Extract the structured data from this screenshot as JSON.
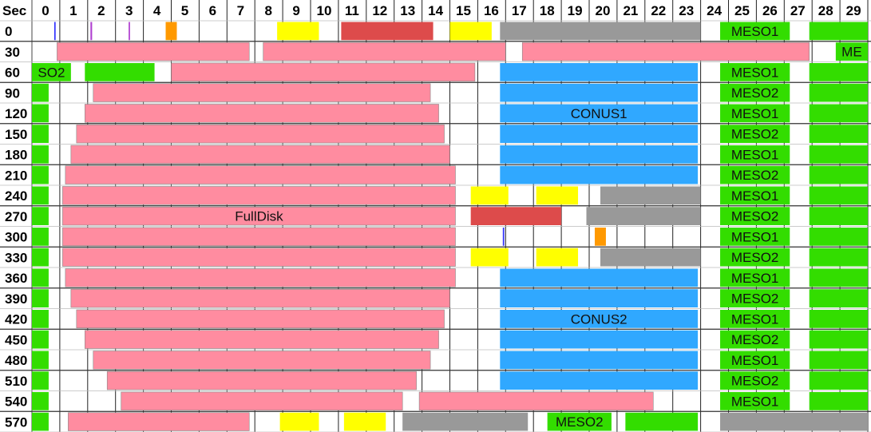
{
  "chart_data": {
    "type": "timeline",
    "corner_label": "Sec",
    "x_ticks": [
      "0",
      "1",
      "2",
      "3",
      "4",
      "5",
      "6",
      "7",
      "8",
      "9",
      "10",
      "11",
      "12",
      "13",
      "14",
      "15",
      "16",
      "17",
      "18",
      "19",
      "20",
      "21",
      "22",
      "23",
      "24",
      "25",
      "26",
      "27",
      "28",
      "29"
    ],
    "rows": [
      "0",
      "30",
      "60",
      "90",
      "120",
      "150",
      "180",
      "210",
      "240",
      "270",
      "300",
      "330",
      "360",
      "390",
      "420",
      "450",
      "480",
      "510",
      "540",
      "570"
    ],
    "colors": {
      "pink": "#ff8ca0",
      "blue": "#30a8ff",
      "green": "#33dd00",
      "gray": "#999999",
      "yellow": "#ffff00",
      "red": "#dd4b4b",
      "orange": "#ff9900",
      "purple": "#b040d0",
      "navy": "#3333ff"
    },
    "blocks": [
      {
        "row": 0,
        "start": 0.8,
        "end": 0.85,
        "color": "navy"
      },
      {
        "row": 0,
        "start": 2.1,
        "end": 2.16,
        "color": "purple"
      },
      {
        "row": 0,
        "start": 3.47,
        "end": 3.52,
        "color": "purple"
      },
      {
        "row": 0,
        "start": 4.8,
        "end": 5.2,
        "color": "orange"
      },
      {
        "row": 0,
        "start": 8.8,
        "end": 10.3,
        "color": "yellow"
      },
      {
        "row": 0,
        "start": 11.1,
        "end": 14.4,
        "color": "red"
      },
      {
        "row": 0,
        "start": 15.0,
        "end": 16.5,
        "color": "yellow"
      },
      {
        "row": 0,
        "start": 16.8,
        "end": 24.0,
        "color": "gray"
      },
      {
        "row": 0,
        "start": 24.7,
        "end": 27.2,
        "color": "green",
        "label": "MESO1"
      },
      {
        "row": 0,
        "start": 27.9,
        "end": 30.0,
        "color": "green"
      },
      {
        "row": 1,
        "start": 0.9,
        "end": 7.8,
        "color": "pink"
      },
      {
        "row": 1,
        "start": 8.3,
        "end": 17.0,
        "color": "pink"
      },
      {
        "row": 1,
        "start": 17.6,
        "end": 27.9,
        "color": "pink"
      },
      {
        "row": 1,
        "start": 28.85,
        "end": 30.0,
        "color": "green",
        "label": "ME"
      },
      {
        "row": 2,
        "start": 0.0,
        "end": 1.4,
        "color": "green",
        "label": "SO2"
      },
      {
        "row": 2,
        "start": 1.9,
        "end": 4.4,
        "color": "green"
      },
      {
        "row": 2,
        "start": 5.0,
        "end": 15.9,
        "color": "pink"
      },
      {
        "row": 2,
        "start": 16.8,
        "end": 23.9,
        "color": "blue"
      },
      {
        "row": 2,
        "start": 24.7,
        "end": 27.2,
        "color": "green",
        "label": "MESO1"
      },
      {
        "row": 2,
        "start": 27.9,
        "end": 30.0,
        "color": "green"
      },
      {
        "row": 3,
        "start": 0.0,
        "end": 0.6,
        "color": "green"
      },
      {
        "row": 3,
        "start": 2.2,
        "end": 14.3,
        "color": "pink"
      },
      {
        "row": 3,
        "start": 16.8,
        "end": 23.9,
        "color": "blue"
      },
      {
        "row": 3,
        "start": 24.7,
        "end": 27.2,
        "color": "green",
        "label": "MESO2"
      },
      {
        "row": 3,
        "start": 27.9,
        "end": 30.0,
        "color": "green"
      },
      {
        "row": 4,
        "start": 0.0,
        "end": 0.6,
        "color": "green"
      },
      {
        "row": 4,
        "start": 1.9,
        "end": 14.6,
        "color": "pink"
      },
      {
        "row": 4,
        "start": 16.8,
        "end": 23.9,
        "color": "blue",
        "label": "CONUS1"
      },
      {
        "row": 4,
        "start": 24.7,
        "end": 27.2,
        "color": "green",
        "label": "MESO1"
      },
      {
        "row": 4,
        "start": 27.9,
        "end": 30.0,
        "color": "green"
      },
      {
        "row": 5,
        "start": 0.0,
        "end": 0.6,
        "color": "green"
      },
      {
        "row": 5,
        "start": 1.6,
        "end": 14.8,
        "color": "pink"
      },
      {
        "row": 5,
        "start": 16.8,
        "end": 23.9,
        "color": "blue"
      },
      {
        "row": 5,
        "start": 24.7,
        "end": 27.2,
        "color": "green",
        "label": "MESO2"
      },
      {
        "row": 5,
        "start": 27.9,
        "end": 30.0,
        "color": "green"
      },
      {
        "row": 6,
        "start": 0.0,
        "end": 0.6,
        "color": "green"
      },
      {
        "row": 6,
        "start": 1.4,
        "end": 15.0,
        "color": "pink"
      },
      {
        "row": 6,
        "start": 16.8,
        "end": 23.9,
        "color": "blue"
      },
      {
        "row": 6,
        "start": 24.7,
        "end": 27.2,
        "color": "green",
        "label": "MESO1"
      },
      {
        "row": 6,
        "start": 27.9,
        "end": 30.0,
        "color": "green"
      },
      {
        "row": 7,
        "start": 0.0,
        "end": 0.6,
        "color": "green"
      },
      {
        "row": 7,
        "start": 1.2,
        "end": 15.2,
        "color": "pink"
      },
      {
        "row": 7,
        "start": 16.8,
        "end": 23.9,
        "color": "blue"
      },
      {
        "row": 7,
        "start": 24.7,
        "end": 27.2,
        "color": "green",
        "label": "MESO2"
      },
      {
        "row": 7,
        "start": 27.9,
        "end": 30.0,
        "color": "green"
      },
      {
        "row": 8,
        "start": 0.0,
        "end": 0.6,
        "color": "green"
      },
      {
        "row": 8,
        "start": 1.1,
        "end": 15.2,
        "color": "pink"
      },
      {
        "row": 8,
        "start": 15.75,
        "end": 17.1,
        "color": "yellow"
      },
      {
        "row": 8,
        "start": 18.1,
        "end": 19.6,
        "color": "yellow"
      },
      {
        "row": 8,
        "start": 20.4,
        "end": 24.0,
        "color": "gray"
      },
      {
        "row": 8,
        "start": 24.7,
        "end": 27.2,
        "color": "green",
        "label": "MESO1"
      },
      {
        "row": 8,
        "start": 27.9,
        "end": 30.0,
        "color": "green"
      },
      {
        "row": 9,
        "start": 0.0,
        "end": 0.6,
        "color": "green"
      },
      {
        "row": 9,
        "start": 1.1,
        "end": 15.2,
        "color": "pink",
        "label": "FullDisk"
      },
      {
        "row": 9,
        "start": 15.75,
        "end": 19.0,
        "color": "red"
      },
      {
        "row": 9,
        "start": 19.9,
        "end": 24.0,
        "color": "gray"
      },
      {
        "row": 9,
        "start": 24.7,
        "end": 27.2,
        "color": "green",
        "label": "MESO2"
      },
      {
        "row": 9,
        "start": 27.9,
        "end": 30.0,
        "color": "green"
      },
      {
        "row": 10,
        "start": 0.0,
        "end": 0.6,
        "color": "green"
      },
      {
        "row": 10,
        "start": 1.1,
        "end": 15.2,
        "color": "pink"
      },
      {
        "row": 10,
        "start": 16.9,
        "end": 16.95,
        "color": "navy"
      },
      {
        "row": 10,
        "start": 20.2,
        "end": 20.6,
        "color": "orange"
      },
      {
        "row": 10,
        "start": 24.7,
        "end": 27.2,
        "color": "green",
        "label": "MESO1"
      },
      {
        "row": 10,
        "start": 27.9,
        "end": 30.0,
        "color": "green"
      },
      {
        "row": 11,
        "start": 0.0,
        "end": 0.6,
        "color": "green"
      },
      {
        "row": 11,
        "start": 1.1,
        "end": 15.2,
        "color": "pink"
      },
      {
        "row": 11,
        "start": 15.75,
        "end": 17.1,
        "color": "yellow"
      },
      {
        "row": 11,
        "start": 18.1,
        "end": 19.6,
        "color": "yellow"
      },
      {
        "row": 11,
        "start": 20.4,
        "end": 24.0,
        "color": "gray"
      },
      {
        "row": 11,
        "start": 24.7,
        "end": 27.2,
        "color": "green",
        "label": "MESO2"
      },
      {
        "row": 11,
        "start": 27.9,
        "end": 30.0,
        "color": "green"
      },
      {
        "row": 12,
        "start": 0.0,
        "end": 0.6,
        "color": "green"
      },
      {
        "row": 12,
        "start": 1.2,
        "end": 15.2,
        "color": "pink"
      },
      {
        "row": 12,
        "start": 16.8,
        "end": 23.9,
        "color": "blue"
      },
      {
        "row": 12,
        "start": 24.7,
        "end": 27.2,
        "color": "green",
        "label": "MESO1"
      },
      {
        "row": 12,
        "start": 27.9,
        "end": 30.0,
        "color": "green"
      },
      {
        "row": 13,
        "start": 0.0,
        "end": 0.6,
        "color": "green"
      },
      {
        "row": 13,
        "start": 1.4,
        "end": 15.0,
        "color": "pink"
      },
      {
        "row": 13,
        "start": 16.8,
        "end": 23.9,
        "color": "blue"
      },
      {
        "row": 13,
        "start": 24.7,
        "end": 27.2,
        "color": "green",
        "label": "MESO2"
      },
      {
        "row": 13,
        "start": 27.9,
        "end": 30.0,
        "color": "green"
      },
      {
        "row": 14,
        "start": 0.0,
        "end": 0.6,
        "color": "green"
      },
      {
        "row": 14,
        "start": 1.6,
        "end": 14.8,
        "color": "pink"
      },
      {
        "row": 14,
        "start": 16.8,
        "end": 23.9,
        "color": "blue",
        "label": "CONUS2"
      },
      {
        "row": 14,
        "start": 24.7,
        "end": 27.2,
        "color": "green",
        "label": "MESO1"
      },
      {
        "row": 14,
        "start": 27.9,
        "end": 30.0,
        "color": "green"
      },
      {
        "row": 15,
        "start": 0.0,
        "end": 0.6,
        "color": "green"
      },
      {
        "row": 15,
        "start": 1.9,
        "end": 14.6,
        "color": "pink"
      },
      {
        "row": 15,
        "start": 16.8,
        "end": 23.9,
        "color": "blue"
      },
      {
        "row": 15,
        "start": 24.7,
        "end": 27.2,
        "color": "green",
        "label": "MESO2"
      },
      {
        "row": 15,
        "start": 27.9,
        "end": 30.0,
        "color": "green"
      },
      {
        "row": 16,
        "start": 0.0,
        "end": 0.6,
        "color": "green"
      },
      {
        "row": 16,
        "start": 2.2,
        "end": 14.3,
        "color": "pink"
      },
      {
        "row": 16,
        "start": 16.8,
        "end": 23.9,
        "color": "blue"
      },
      {
        "row": 16,
        "start": 24.7,
        "end": 27.2,
        "color": "green",
        "label": "MESO1"
      },
      {
        "row": 16,
        "start": 27.9,
        "end": 30.0,
        "color": "green"
      },
      {
        "row": 17,
        "start": 0.0,
        "end": 0.6,
        "color": "green"
      },
      {
        "row": 17,
        "start": 2.7,
        "end": 13.8,
        "color": "pink"
      },
      {
        "row": 17,
        "start": 16.8,
        "end": 23.9,
        "color": "blue"
      },
      {
        "row": 17,
        "start": 24.7,
        "end": 27.2,
        "color": "green",
        "label": "MESO2"
      },
      {
        "row": 17,
        "start": 27.9,
        "end": 30.0,
        "color": "green"
      },
      {
        "row": 18,
        "start": 0.0,
        "end": 0.6,
        "color": "green"
      },
      {
        "row": 18,
        "start": 3.2,
        "end": 13.3,
        "color": "pink"
      },
      {
        "row": 18,
        "start": 13.9,
        "end": 22.3,
        "color": "pink"
      },
      {
        "row": 18,
        "start": 24.7,
        "end": 27.2,
        "color": "green",
        "label": "MESO1"
      },
      {
        "row": 18,
        "start": 27.9,
        "end": 30.0,
        "color": "green"
      },
      {
        "row": 19,
        "start": 0.0,
        "end": 0.6,
        "color": "green"
      },
      {
        "row": 19,
        "start": 1.3,
        "end": 7.8,
        "color": "pink"
      },
      {
        "row": 19,
        "start": 8.9,
        "end": 10.3,
        "color": "yellow"
      },
      {
        "row": 19,
        "start": 11.2,
        "end": 12.7,
        "color": "yellow"
      },
      {
        "row": 19,
        "start": 13.3,
        "end": 17.8,
        "color": "gray"
      },
      {
        "row": 19,
        "start": 18.5,
        "end": 20.8,
        "color": "green",
        "label": "MESO2"
      },
      {
        "row": 19,
        "start": 21.3,
        "end": 23.9,
        "color": "green"
      },
      {
        "row": 19,
        "start": 24.7,
        "end": 30.0,
        "color": "gray"
      }
    ]
  }
}
